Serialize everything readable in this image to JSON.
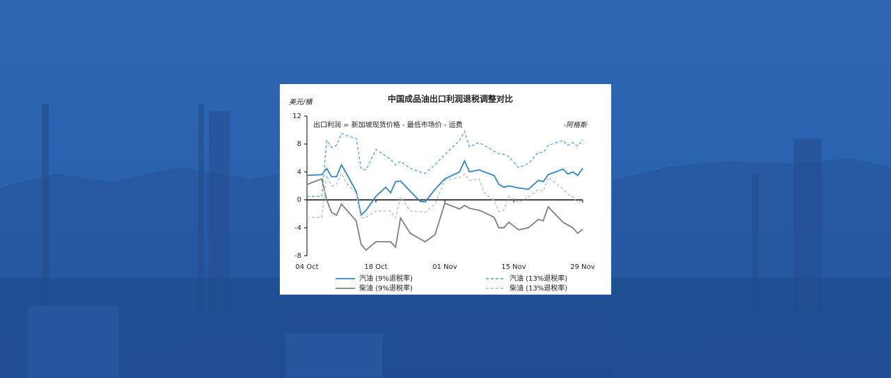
{
  "chart_data": {
    "type": "line",
    "title": "中国成品油出口利润退税调整对比",
    "y_label": "美元/桶",
    "annotation": "出口利润 = 新加坡现货价格 - 最低市场价 - 运费",
    "source": "-阿格斯",
    "x": [
      "04 Oct",
      "07 Oct",
      "08 Oct",
      "09 Oct",
      "10 Oct",
      "11 Oct",
      "12 Oct",
      "14 Oct",
      "15 Oct",
      "16 Oct",
      "18 Oct",
      "20 Oct",
      "21 Oct",
      "22 Oct",
      "23 Oct",
      "25 Oct",
      "27 Oct",
      "28 Oct",
      "30 Oct",
      "01 Nov",
      "04 Nov",
      "05 Nov",
      "06 Nov",
      "08 Nov",
      "09 Nov",
      "11 Nov",
      "12 Nov",
      "13 Nov",
      "14 Nov",
      "16 Nov",
      "18 Nov",
      "20 Nov",
      "21 Nov",
      "22 Nov",
      "25 Nov",
      "26 Nov",
      "27 Nov",
      "28 Nov",
      "29 Nov"
    ],
    "xlim": [
      "04 Oct",
      "29 Nov"
    ],
    "xticks": [
      "04 Oct",
      "18 Oct",
      "01 Nov",
      "15 Nov",
      "29 Nov"
    ],
    "ylim": [
      -8,
      12
    ],
    "yticks": [
      -8,
      -4,
      0,
      4,
      8,
      12
    ],
    "series": [
      {
        "name": "汽油 (9%退税率)",
        "color": "#2e86c1",
        "dashed": false,
        "values": [
          3.5,
          3.6,
          4.5,
          3.3,
          3.3,
          5.0,
          3.8,
          1.2,
          -2.2,
          -1.5,
          0.5,
          1.8,
          1.0,
          2.6,
          2.7,
          1.2,
          -0.2,
          -0.3,
          1.5,
          3.0,
          4.0,
          5.6,
          4.0,
          4.3,
          4.0,
          3.5,
          2.2,
          1.8,
          2.0,
          1.7,
          1.5,
          2.8,
          2.6,
          3.6,
          4.4,
          3.7,
          4.0,
          3.5,
          4.5
        ]
      },
      {
        "name": "汽油 (13%退税率)",
        "color": "#5da9dd",
        "dashed": true,
        "values": [
          0.5,
          0.5,
          8.5,
          7.5,
          7.8,
          9.5,
          9.2,
          8.8,
          4.5,
          4.3,
          7.2,
          6.3,
          5.8,
          5.0,
          5.5,
          4.5,
          4.0,
          3.8,
          5.0,
          6.5,
          8.5,
          9.8,
          7.6,
          8.2,
          7.8,
          7.0,
          6.6,
          6.5,
          6.2,
          4.6,
          5.2,
          6.8,
          6.8,
          7.8,
          8.5,
          7.8,
          8.2,
          7.7,
          8.6
        ]
      },
      {
        "name": "柴油 (9%退税率)",
        "color": "#7f7f7f",
        "dashed": false,
        "values": [
          2.2,
          3.0,
          0.0,
          -1.8,
          -2.2,
          -0.6,
          -1.4,
          -3.0,
          -6.4,
          -7.2,
          -6.0,
          -6.0,
          -6.0,
          -6.8,
          -2.6,
          -4.8,
          -5.6,
          -6.0,
          -5.0,
          -0.5,
          -1.3,
          -0.8,
          -1.2,
          -1.5,
          -1.8,
          -2.5,
          -4.0,
          -4.0,
          -3.2,
          -4.3,
          -4.0,
          -2.8,
          -3.0,
          -1.0,
          -3.2,
          -3.6,
          -4.0,
          -4.8,
          -4.2
        ]
      },
      {
        "name": "柴油 (13%退税率)",
        "color": "#bfbfbf",
        "dashed": true,
        "values": [
          -2.5,
          -2.5,
          3.5,
          2.0,
          2.2,
          3.8,
          2.4,
          1.0,
          -2.6,
          -2.5,
          -1.6,
          -1.6,
          -1.6,
          -2.6,
          0.4,
          -1.6,
          -1.7,
          -1.8,
          -0.6,
          2.8,
          3.2,
          3.7,
          2.8,
          3.0,
          1.0,
          -0.1,
          -1.7,
          -1.5,
          0.5,
          -0.4,
          0.4,
          1.5,
          1.2,
          3.2,
          1.6,
          0.8,
          0.4,
          -0.4,
          0.0
        ]
      }
    ]
  }
}
